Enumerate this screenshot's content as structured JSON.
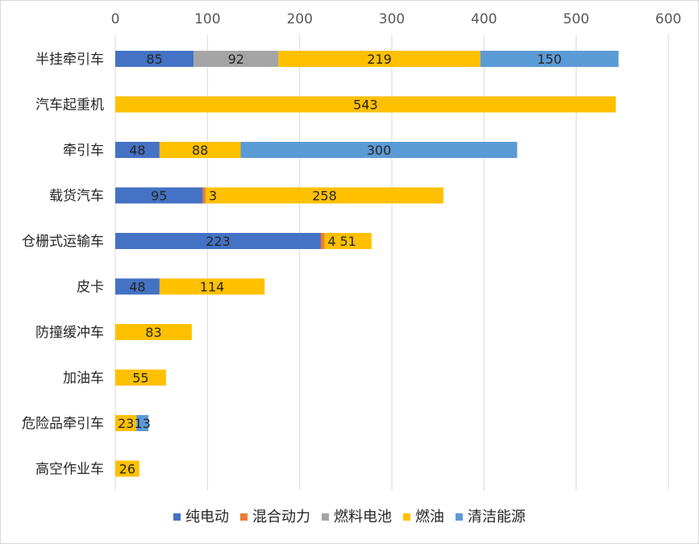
{
  "chart_data": {
    "type": "bar",
    "orientation": "horizontal",
    "stacked": true,
    "title": "",
    "xlabel": "",
    "ylabel": "",
    "xlim": [
      0,
      600
    ],
    "x_ticks": [
      0,
      100,
      200,
      300,
      400,
      500,
      600
    ],
    "x_axis_position": "top",
    "grid": true,
    "legend_position": "bottom",
    "categories": [
      "半挂牵引车",
      "汽车起重机",
      "牵引车",
      "载货汽车",
      "仓栅式运输车",
      "皮卡",
      "防撞缓冲车",
      "加油车",
      "危险品牵引车",
      "高空作业车"
    ],
    "series": [
      {
        "name": "纯电动",
        "color": "#4472C4",
        "values": [
          85,
          0,
          48,
          95,
          223,
          48,
          0,
          0,
          0,
          0
        ]
      },
      {
        "name": "混合动力",
        "color": "#ED7D31",
        "values": [
          0,
          0,
          0,
          3,
          4,
          0,
          0,
          0,
          0,
          0
        ]
      },
      {
        "name": "燃料电池",
        "color": "#A5A5A5",
        "values": [
          92,
          0,
          0,
          0,
          0,
          0,
          0,
          0,
          0,
          0
        ]
      },
      {
        "name": "燃油",
        "color": "#FFC000",
        "values": [
          219,
          543,
          88,
          258,
          51,
          114,
          83,
          55,
          23,
          26
        ]
      },
      {
        "name": "清洁能源",
        "color": "#5B9BD5",
        "values": [
          150,
          0,
          300,
          0,
          0,
          0,
          0,
          0,
          13,
          0
        ]
      }
    ]
  }
}
